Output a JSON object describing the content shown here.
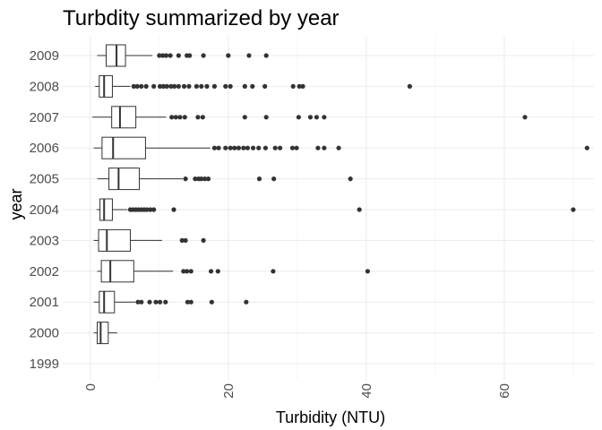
{
  "chart_data": {
    "type": "boxplot",
    "orientation": "horizontal",
    "title": "Turbdity summarized by year",
    "xlabel": "Turbidity (NTU)",
    "ylabel": "year",
    "xlim": [
      -4,
      73
    ],
    "xticks": [
      0,
      20,
      40,
      60
    ],
    "xtick_labels": [
      "0",
      "20",
      "40",
      "60"
    ],
    "xtick_rotation": -90,
    "grid": true,
    "legend": "none",
    "categories": [
      "1999",
      "2000",
      "2001",
      "2002",
      "2003",
      "2004",
      "2005",
      "2006",
      "2007",
      "2008",
      "2009"
    ],
    "boxes": [
      {
        "year": "1999",
        "empty": true
      },
      {
        "year": "2000",
        "lower": 0.5,
        "q1": 1.0,
        "median": 1.5,
        "q3": 2.6,
        "upper": 3.9,
        "outliers": []
      },
      {
        "year": "2001",
        "lower": 0.5,
        "q1": 1.3,
        "median": 2.0,
        "q3": 3.5,
        "upper": 6.5,
        "outliers": [
          6.9,
          7.4,
          8.6,
          9.5,
          10.1,
          10.9,
          14.1,
          14.6,
          17.6,
          22.6
        ]
      },
      {
        "year": "2002",
        "lower": 1.0,
        "q1": 1.6,
        "median": 2.9,
        "q3": 6.3,
        "upper": 12.0,
        "outliers": [
          13.5,
          14.0,
          14.6,
          17.5,
          18.5,
          26.5,
          40.2
        ]
      },
      {
        "year": "2003",
        "lower": 0.5,
        "q1": 1.2,
        "median": 2.4,
        "q3": 5.8,
        "upper": 10.4,
        "outliers": [
          13.3,
          13.8,
          16.4
        ]
      },
      {
        "year": "2004",
        "lower": 0.9,
        "q1": 1.4,
        "median": 2.0,
        "q3": 3.2,
        "upper": 5.4,
        "outliers": [
          5.8,
          6.2,
          6.6,
          7.0,
          7.4,
          7.8,
          8.2,
          8.7,
          9.2,
          12.1,
          39.0,
          70.0
        ]
      },
      {
        "year": "2005",
        "lower": 1.0,
        "q1": 2.7,
        "median": 4.1,
        "q3": 7.1,
        "upper": 13.4,
        "outliers": [
          13.8,
          15.2,
          15.7,
          16.1,
          16.6,
          17.1,
          24.5,
          26.6,
          37.7
        ]
      },
      {
        "year": "2006",
        "lower": 0.5,
        "q1": 1.7,
        "median": 3.3,
        "q3": 8.0,
        "upper": 17.4,
        "outliers": [
          18.0,
          18.6,
          19.6,
          20.3,
          20.9,
          21.5,
          22.2,
          22.8,
          23.6,
          24.4,
          25.4,
          26.8,
          27.5,
          29.3,
          29.9,
          33.0,
          33.9,
          36.0,
          72.0
        ]
      },
      {
        "year": "2007",
        "lower": 0.3,
        "q1": 3.1,
        "median": 4.3,
        "q3": 6.6,
        "upper": 11.0,
        "outliers": [
          11.8,
          12.4,
          13.0,
          13.7,
          15.6,
          16.3,
          22.4,
          25.5,
          30.2,
          31.9,
          32.8,
          33.9,
          63.0
        ]
      },
      {
        "year": "2008",
        "lower": 0.7,
        "q1": 1.3,
        "median": 2.0,
        "q3": 3.2,
        "upper": 5.8,
        "outliers": [
          6.3,
          6.8,
          7.4,
          8.1,
          9.2,
          10.1,
          10.6,
          11.1,
          11.7,
          12.2,
          12.8,
          13.6,
          14.3,
          15.4,
          16.1,
          16.9,
          18.0,
          19.6,
          20.3,
          22.4,
          23.5,
          25.3,
          29.4,
          30.3,
          30.8,
          46.3
        ]
      },
      {
        "year": "2009",
        "lower": 1.0,
        "q1": 2.3,
        "median": 3.8,
        "q3": 5.1,
        "upper": 9.0,
        "outliers": [
          10.0,
          10.5,
          11.0,
          11.6,
          12.8,
          14.0,
          14.4,
          16.4,
          20.0,
          23.0,
          25.5
        ]
      }
    ]
  }
}
